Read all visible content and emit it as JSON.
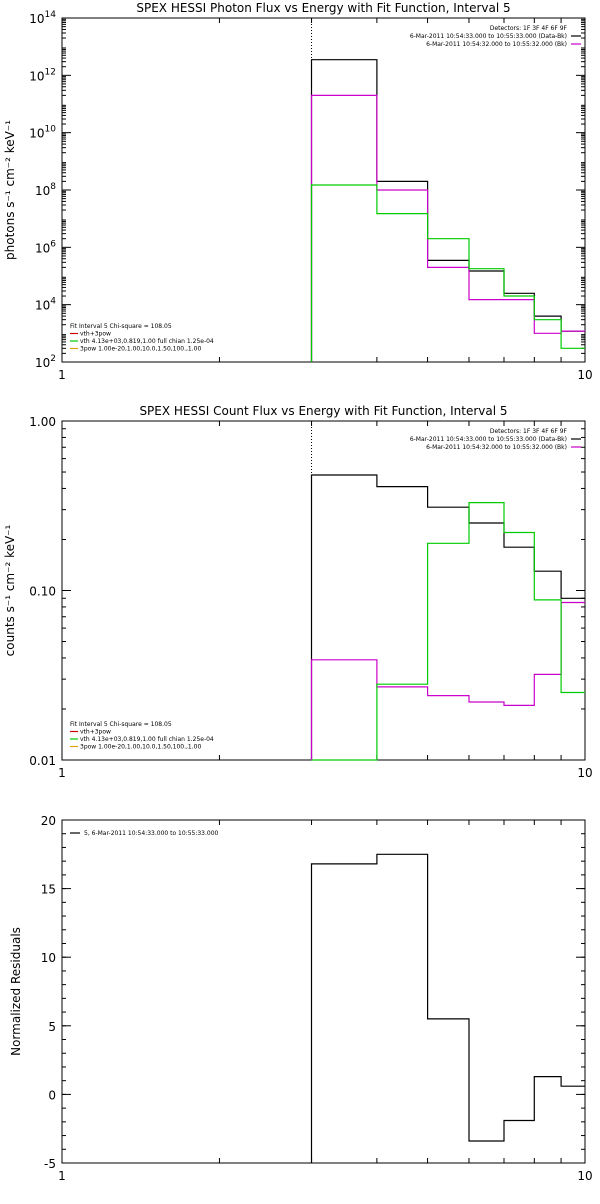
{
  "chart_data": [
    {
      "type": "line",
      "title": "SPEX HESSI Photon Flux vs Energy with Fit Function, Interval 5",
      "xlabel": "",
      "ylabel": "photons s⁻¹ cm⁻² keV⁻¹",
      "x_scale": "log",
      "y_scale": "log",
      "xlim": [
        1,
        10
      ],
      "ylim": [
        100,
        100000000000000.0
      ],
      "x_ticks": [
        {
          "v": 1,
          "label": "1"
        },
        {
          "v": 10,
          "label": "10"
        }
      ],
      "y_ticks": [
        {
          "v": 100,
          "base": "10",
          "exp": "2"
        },
        {
          "v": 10000,
          "base": "10",
          "exp": "4"
        },
        {
          "v": 1000000.0,
          "base": "10",
          "exp": "6"
        },
        {
          "v": 100000000.0,
          "base": "10",
          "exp": "8"
        },
        {
          "v": 10000000000.0,
          "base": "10",
          "exp": "10"
        },
        {
          "v": 1000000000000.0,
          "base": "10",
          "exp": "12"
        },
        {
          "v": 100000000000000.0,
          "base": "10",
          "exp": "14"
        }
      ],
      "vline": 3,
      "legend_top": [
        {
          "text": "Detectors: 1F 3F 4F 6F 9F",
          "color": ""
        },
        {
          "text": "6-Mar-2011 10:54:33.000 to 10:55:33.000 (Data-Bk)",
          "color": "#000000"
        },
        {
          "text": "6-Mar-2011 10:54:32.000 to 10:55:32.000 (Bk)",
          "color": "#cc00cc"
        }
      ],
      "legend_bottom": [
        {
          "text": "Fit Interval 5   Chi-square = 108.05",
          "color": ""
        },
        {
          "text": "vth+3pow",
          "color": "#cc0000"
        },
        {
          "text": "vth 4.13e+03,0.819,1.00  full chian 1.25e-04",
          "color": "#00cc00"
        },
        {
          "text": "3pow 1.00e-20,1.00,10.0,1.50,100.,1.00",
          "color": "#e0a000"
        }
      ],
      "series": [
        {
          "color": "#000000",
          "edges": [
            3,
            4,
            5,
            6,
            7,
            8,
            9,
            10
          ],
          "values": [
            3500000000000.0,
            200000000.0,
            350000.0,
            150000.0,
            25000.0,
            4000.0,
            1200.0
          ]
        },
        {
          "color": "#cc00cc",
          "edges": [
            3,
            4,
            5,
            6,
            7,
            8,
            9,
            10
          ],
          "values": [
            200000000000.0,
            100000000.0,
            200000.0,
            15000.0,
            15000.0,
            1000.0,
            1200.0
          ]
        },
        {
          "color": "#00cc00",
          "edges": [
            3,
            4,
            5,
            6,
            7,
            8,
            9,
            10
          ],
          "values": [
            150000000.0,
            15000000.0,
            2000000.0,
            180000.0,
            20000.0,
            3000.0,
            300
          ]
        }
      ]
    },
    {
      "type": "line",
      "title": "SPEX HESSI Count Flux vs Energy with Fit Function, Interval 5",
      "xlabel": "",
      "ylabel": "counts s⁻¹ cm⁻² keV⁻¹",
      "x_scale": "log",
      "y_scale": "log",
      "xlim": [
        1,
        10
      ],
      "ylim": [
        0.01,
        1.0
      ],
      "x_ticks": [
        {
          "v": 1,
          "label": "1"
        },
        {
          "v": 10,
          "label": "10"
        }
      ],
      "y_ticks": [
        {
          "v": 0.01,
          "label": "0.01"
        },
        {
          "v": 0.1,
          "label": "0.10"
        },
        {
          "v": 1.0,
          "label": "1.00"
        }
      ],
      "vline": 3,
      "legend_top": [
        {
          "text": "Detectors: 1F 3F 4F 6F 9F",
          "color": ""
        },
        {
          "text": "6-Mar-2011 10:54:33.000 to 10:55:33.000 (Data-Bk)",
          "color": "#000000"
        },
        {
          "text": "6-Mar-2011 10:54:32.000 to 10:55:32.000 (Bk)",
          "color": "#cc00cc"
        }
      ],
      "legend_bottom": [
        {
          "text": "Fit Interval 5   Chi-square = 108.05",
          "color": ""
        },
        {
          "text": "vth+3pow",
          "color": "#cc0000"
        },
        {
          "text": "vth 4.13e+03,0.819,1.00  full chian 1.25e-04",
          "color": "#00cc00"
        },
        {
          "text": "3pow 1.00e-20,1.00,10.0,1.50,100.,1.00",
          "color": "#e0a000"
        }
      ],
      "series": [
        {
          "color": "#000000",
          "edges": [
            3,
            3.5,
            4,
            4.5,
            5,
            5.5,
            6,
            6.5,
            7,
            7.5,
            8,
            8.5,
            9,
            9.5,
            10
          ],
          "values": [
            0.48,
            0.48,
            0.41,
            0.41,
            0.31,
            0.31,
            0.25,
            0.25,
            0.18,
            0.18,
            0.13,
            0.13,
            0.09,
            0.09
          ]
        },
        {
          "color": "#cc00cc",
          "edges": [
            3,
            3.5,
            4,
            4.5,
            5,
            5.5,
            6,
            6.5,
            7,
            7.5,
            8,
            8.5,
            9,
            9.5,
            10
          ],
          "values": [
            0.039,
            0.039,
            0.027,
            0.027,
            0.024,
            0.024,
            0.022,
            0.022,
            0.021,
            0.021,
            0.032,
            0.032,
            0.085,
            0.085
          ]
        },
        {
          "color": "#00cc00",
          "edges": [
            3,
            3.5,
            4,
            4.5,
            5,
            5.5,
            6,
            6.5,
            7,
            7.5,
            8,
            8.5,
            9,
            9.5,
            10
          ],
          "values": [
            0.0095,
            0.0095,
            0.028,
            0.028,
            0.19,
            0.19,
            0.33,
            0.33,
            0.22,
            0.22,
            0.088,
            0.088,
            0.025,
            0.025
          ]
        }
      ]
    },
    {
      "type": "line",
      "title": "",
      "xlabel": "",
      "ylabel": "Normalized Residuals",
      "x_scale": "log",
      "y_scale": "linear",
      "xlim": [
        1,
        10
      ],
      "ylim": [
        -5,
        20
      ],
      "x_ticks": [
        {
          "v": 1,
          "label": "1"
        },
        {
          "v": 10,
          "label": "10"
        }
      ],
      "y_ticks": [
        {
          "v": -5,
          "label": "-5"
        },
        {
          "v": 0,
          "label": "0"
        },
        {
          "v": 5,
          "label": "5"
        },
        {
          "v": 10,
          "label": "10"
        },
        {
          "v": 15,
          "label": "15"
        },
        {
          "v": 20,
          "label": "20"
        }
      ],
      "vline": null,
      "legend_top": [],
      "legend_bottom": [],
      "legend_upper_left": [
        {
          "text": "5,  6-Mar-2011 10:54:33.000 to 10:55:33.000",
          "color": "#000000"
        }
      ],
      "series": [
        {
          "color": "#000000",
          "edges": [
            3,
            4,
            5,
            6,
            7,
            8,
            9,
            10
          ],
          "values": [
            16.8,
            17.5,
            5.5,
            -3.4,
            -1.9,
            1.3,
            0.6
          ]
        }
      ]
    }
  ]
}
